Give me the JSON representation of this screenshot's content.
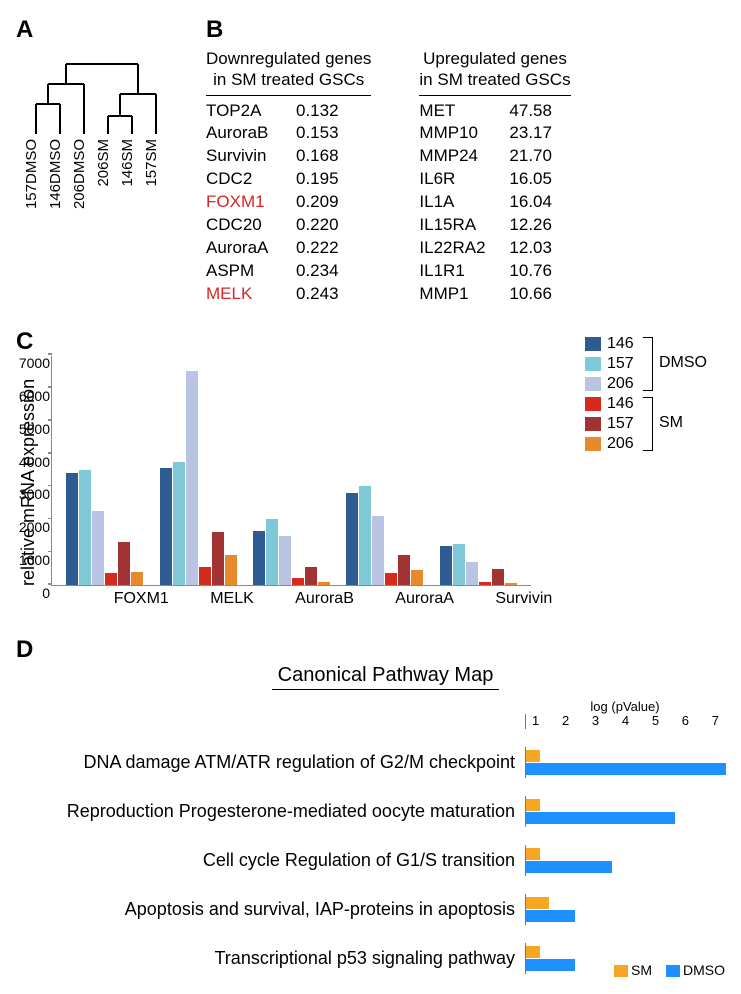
{
  "colors": {
    "dmso146": "#2f5b93",
    "dmso157": "#7fc8d8",
    "dmso206": "#b9c4e2",
    "sm146": "#d52b1e",
    "sm157": "#a13333",
    "sm206": "#e78a2e",
    "axis": "#8a8a8a",
    "orange": "#f5a623",
    "blue": "#1e90ff",
    "highlight": "#d62728"
  },
  "A": {
    "label": "A",
    "leaves": [
      "157DMSO",
      "146DMSO",
      "206DMSO",
      "206SM",
      "146SM",
      "157SM"
    ]
  },
  "B": {
    "label": "B",
    "down": {
      "title": [
        "Downregulated genes",
        "in SM treated GSCs"
      ],
      "rows": [
        {
          "gene": "TOP2A",
          "v": "0.132",
          "hl": false
        },
        {
          "gene": "AuroraB",
          "v": "0.153",
          "hl": false
        },
        {
          "gene": "Survivin",
          "v": "0.168",
          "hl": false
        },
        {
          "gene": "CDC2",
          "v": "0.195",
          "hl": false
        },
        {
          "gene": "FOXM1",
          "v": "0.209",
          "hl": true
        },
        {
          "gene": "CDC20",
          "v": "0.220",
          "hl": false
        },
        {
          "gene": "AuroraA",
          "v": "0.222",
          "hl": false
        },
        {
          "gene": "ASPM",
          "v": "0.234",
          "hl": false
        },
        {
          "gene": "MELK",
          "v": "0.243",
          "hl": true
        }
      ]
    },
    "up": {
      "title": [
        "Upregulated genes",
        "in SM treated GSCs"
      ],
      "rows": [
        {
          "gene": "MET",
          "v": "47.58"
        },
        {
          "gene": "MMP10",
          "v": "23.17"
        },
        {
          "gene": "MMP24",
          "v": "21.70"
        },
        {
          "gene": "IL6R",
          "v": "16.05"
        },
        {
          "gene": "IL1A",
          "v": "16.04"
        },
        {
          "gene": "IL15RA",
          "v": "12.26"
        },
        {
          "gene": "IL22RA2",
          "v": "12.03"
        },
        {
          "gene": "IL1R1",
          "v": "10.76"
        },
        {
          "gene": "MMP1",
          "v": "10.66"
        }
      ]
    }
  },
  "C": {
    "label": "C",
    "ylabel": "relative mRNA expression",
    "ylim": [
      0,
      7000
    ],
    "ytick_step": 1000,
    "categories": [
      "FOXM1",
      "MELK",
      "AuroraB",
      "AuroraA",
      "Survivin"
    ],
    "series": [
      {
        "name": "146",
        "cond": "DMSO",
        "colorKey": "dmso146",
        "values": [
          3400,
          3550,
          1650,
          2800,
          1200
        ]
      },
      {
        "name": "157",
        "cond": "DMSO",
        "colorKey": "dmso157",
        "values": [
          3500,
          3750,
          2000,
          3000,
          1250
        ]
      },
      {
        "name": "206",
        "cond": "DMSO",
        "colorKey": "dmso206",
        "values": [
          2250,
          6500,
          1500,
          2100,
          700
        ]
      },
      {
        "name": "146",
        "cond": "SM",
        "colorKey": "sm146",
        "values": [
          350,
          550,
          200,
          350,
          100
        ]
      },
      {
        "name": "157",
        "cond": "SM",
        "colorKey": "sm157",
        "values": [
          1300,
          1600,
          550,
          900,
          500
        ]
      },
      {
        "name": "206",
        "cond": "SM",
        "colorKey": "sm206",
        "values": [
          400,
          900,
          80,
          450,
          60
        ]
      }
    ],
    "legend_groups": [
      {
        "cond": "DMSO",
        "rows": [
          "146",
          "157",
          "206"
        ]
      },
      {
        "cond": "SM",
        "rows": [
          "146",
          "157",
          "206"
        ]
      }
    ]
  },
  "D": {
    "label": "D",
    "title": "Canonical Pathway Map",
    "scale_label": "log (pValue)",
    "ticks": [
      "1",
      "2",
      "3",
      "4",
      "5",
      "6",
      "7"
    ],
    "max": 7,
    "rows": [
      {
        "name": "DNA damage ATM/ATR regulation of G2/M checkpoint",
        "sm": 0.5,
        "dmso": 7.5
      },
      {
        "name": "Reproduction Progesterone-mediated oocyte maturation",
        "sm": 0.5,
        "dmso": 5.2
      },
      {
        "name": "Cell cycle Regulation of G1/S transition",
        "sm": 0.5,
        "dmso": 3.0
      },
      {
        "name": "Apoptosis and survival, IAP-proteins in apoptosis",
        "sm": 0.8,
        "dmso": 1.7
      },
      {
        "name": "Transcriptional p53 signaling pathway",
        "sm": 0.5,
        "dmso": 1.7
      }
    ],
    "legend": [
      {
        "label": "SM",
        "colorKey": "orange"
      },
      {
        "label": "DMSO",
        "colorKey": "blue"
      }
    ]
  }
}
